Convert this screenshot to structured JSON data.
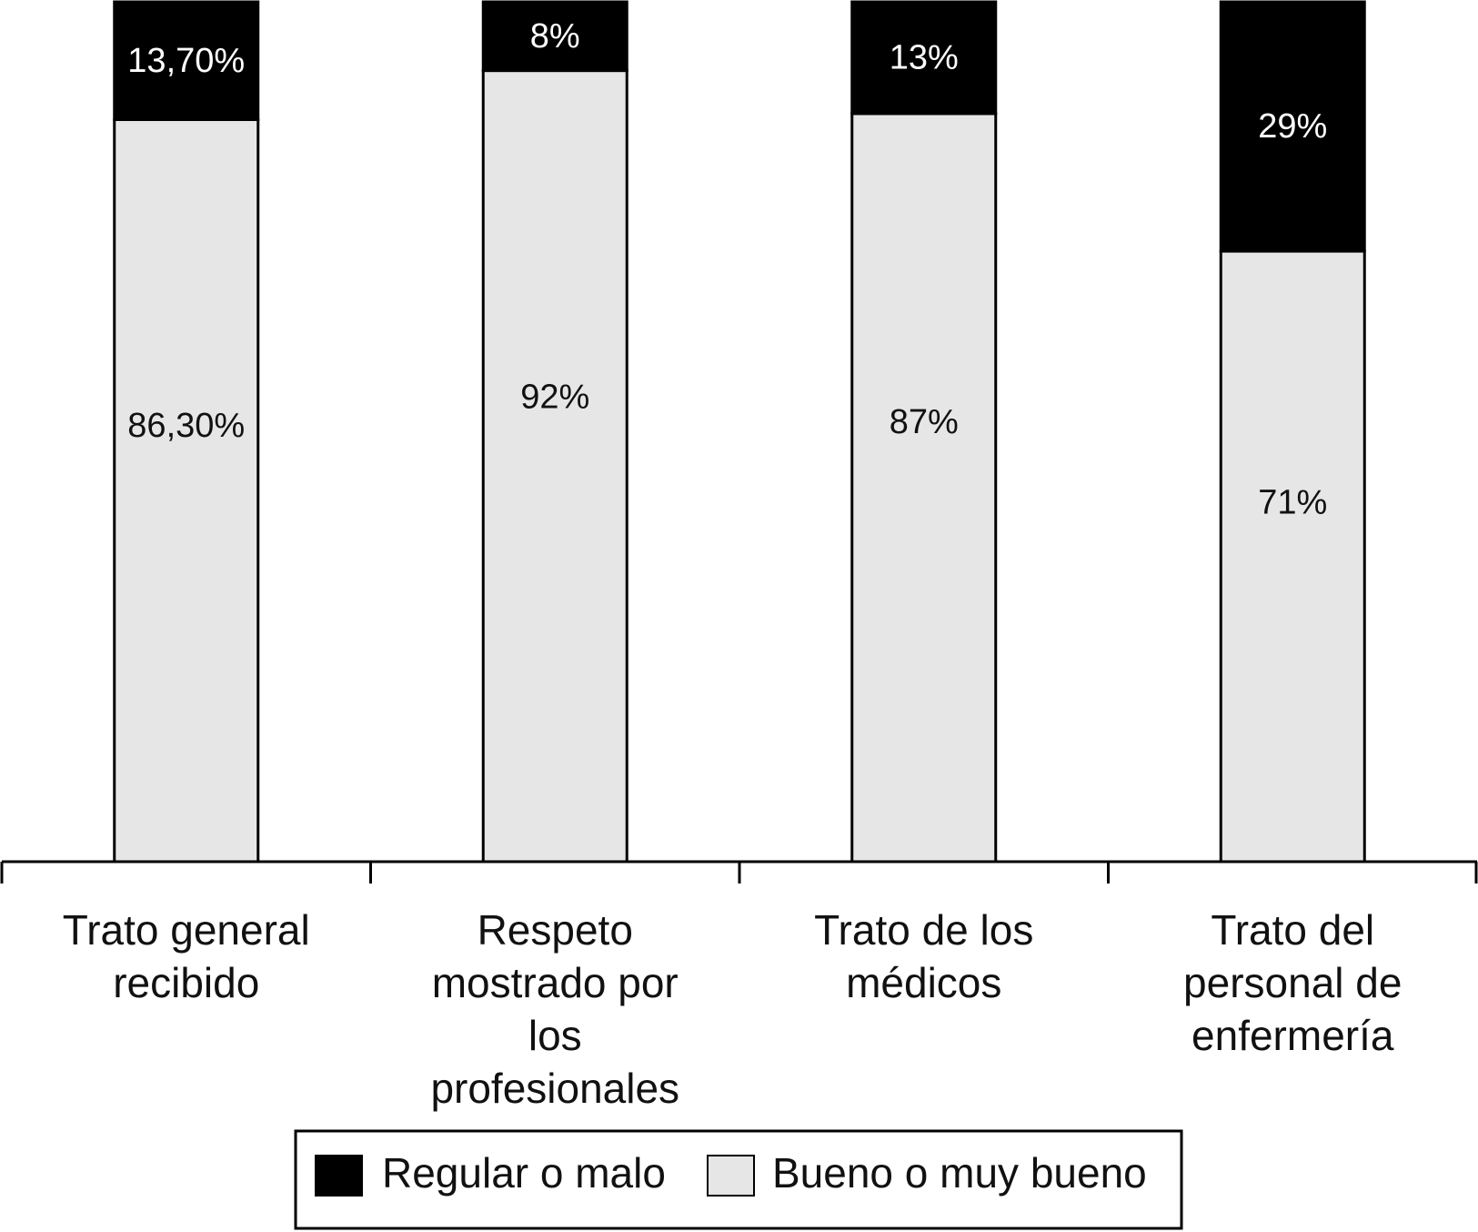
{
  "chart_data": {
    "type": "bar",
    "stacked": true,
    "normalized_percent": true,
    "categories": [
      [
        "Trato general",
        "recibido"
      ],
      [
        "Respeto",
        "mostrado por",
        "los",
        "profesionales"
      ],
      [
        "Trato de los",
        "médicos"
      ],
      [
        "Trato del",
        "personal de",
        "enfermería"
      ]
    ],
    "series": [
      {
        "name": "Bueno o muy bueno",
        "color": "#e6e6e6",
        "values": [
          86.3,
          92,
          87,
          71
        ],
        "labels": [
          "86,30%",
          "92%",
          "87%",
          "71%"
        ]
      },
      {
        "name": "Regular o malo",
        "color": "#000000",
        "values": [
          13.7,
          8,
          13,
          29
        ],
        "labels": [
          "13,70%",
          "8%",
          "13%",
          "29%"
        ]
      }
    ],
    "ylim": [
      0,
      100
    ],
    "grid": false,
    "legend": {
      "position": "bottom",
      "entries": [
        {
          "label": "Regular o malo",
          "color": "#000000"
        },
        {
          "label": "Bueno o muy bueno",
          "color": "#e6e6e6"
        }
      ]
    }
  }
}
